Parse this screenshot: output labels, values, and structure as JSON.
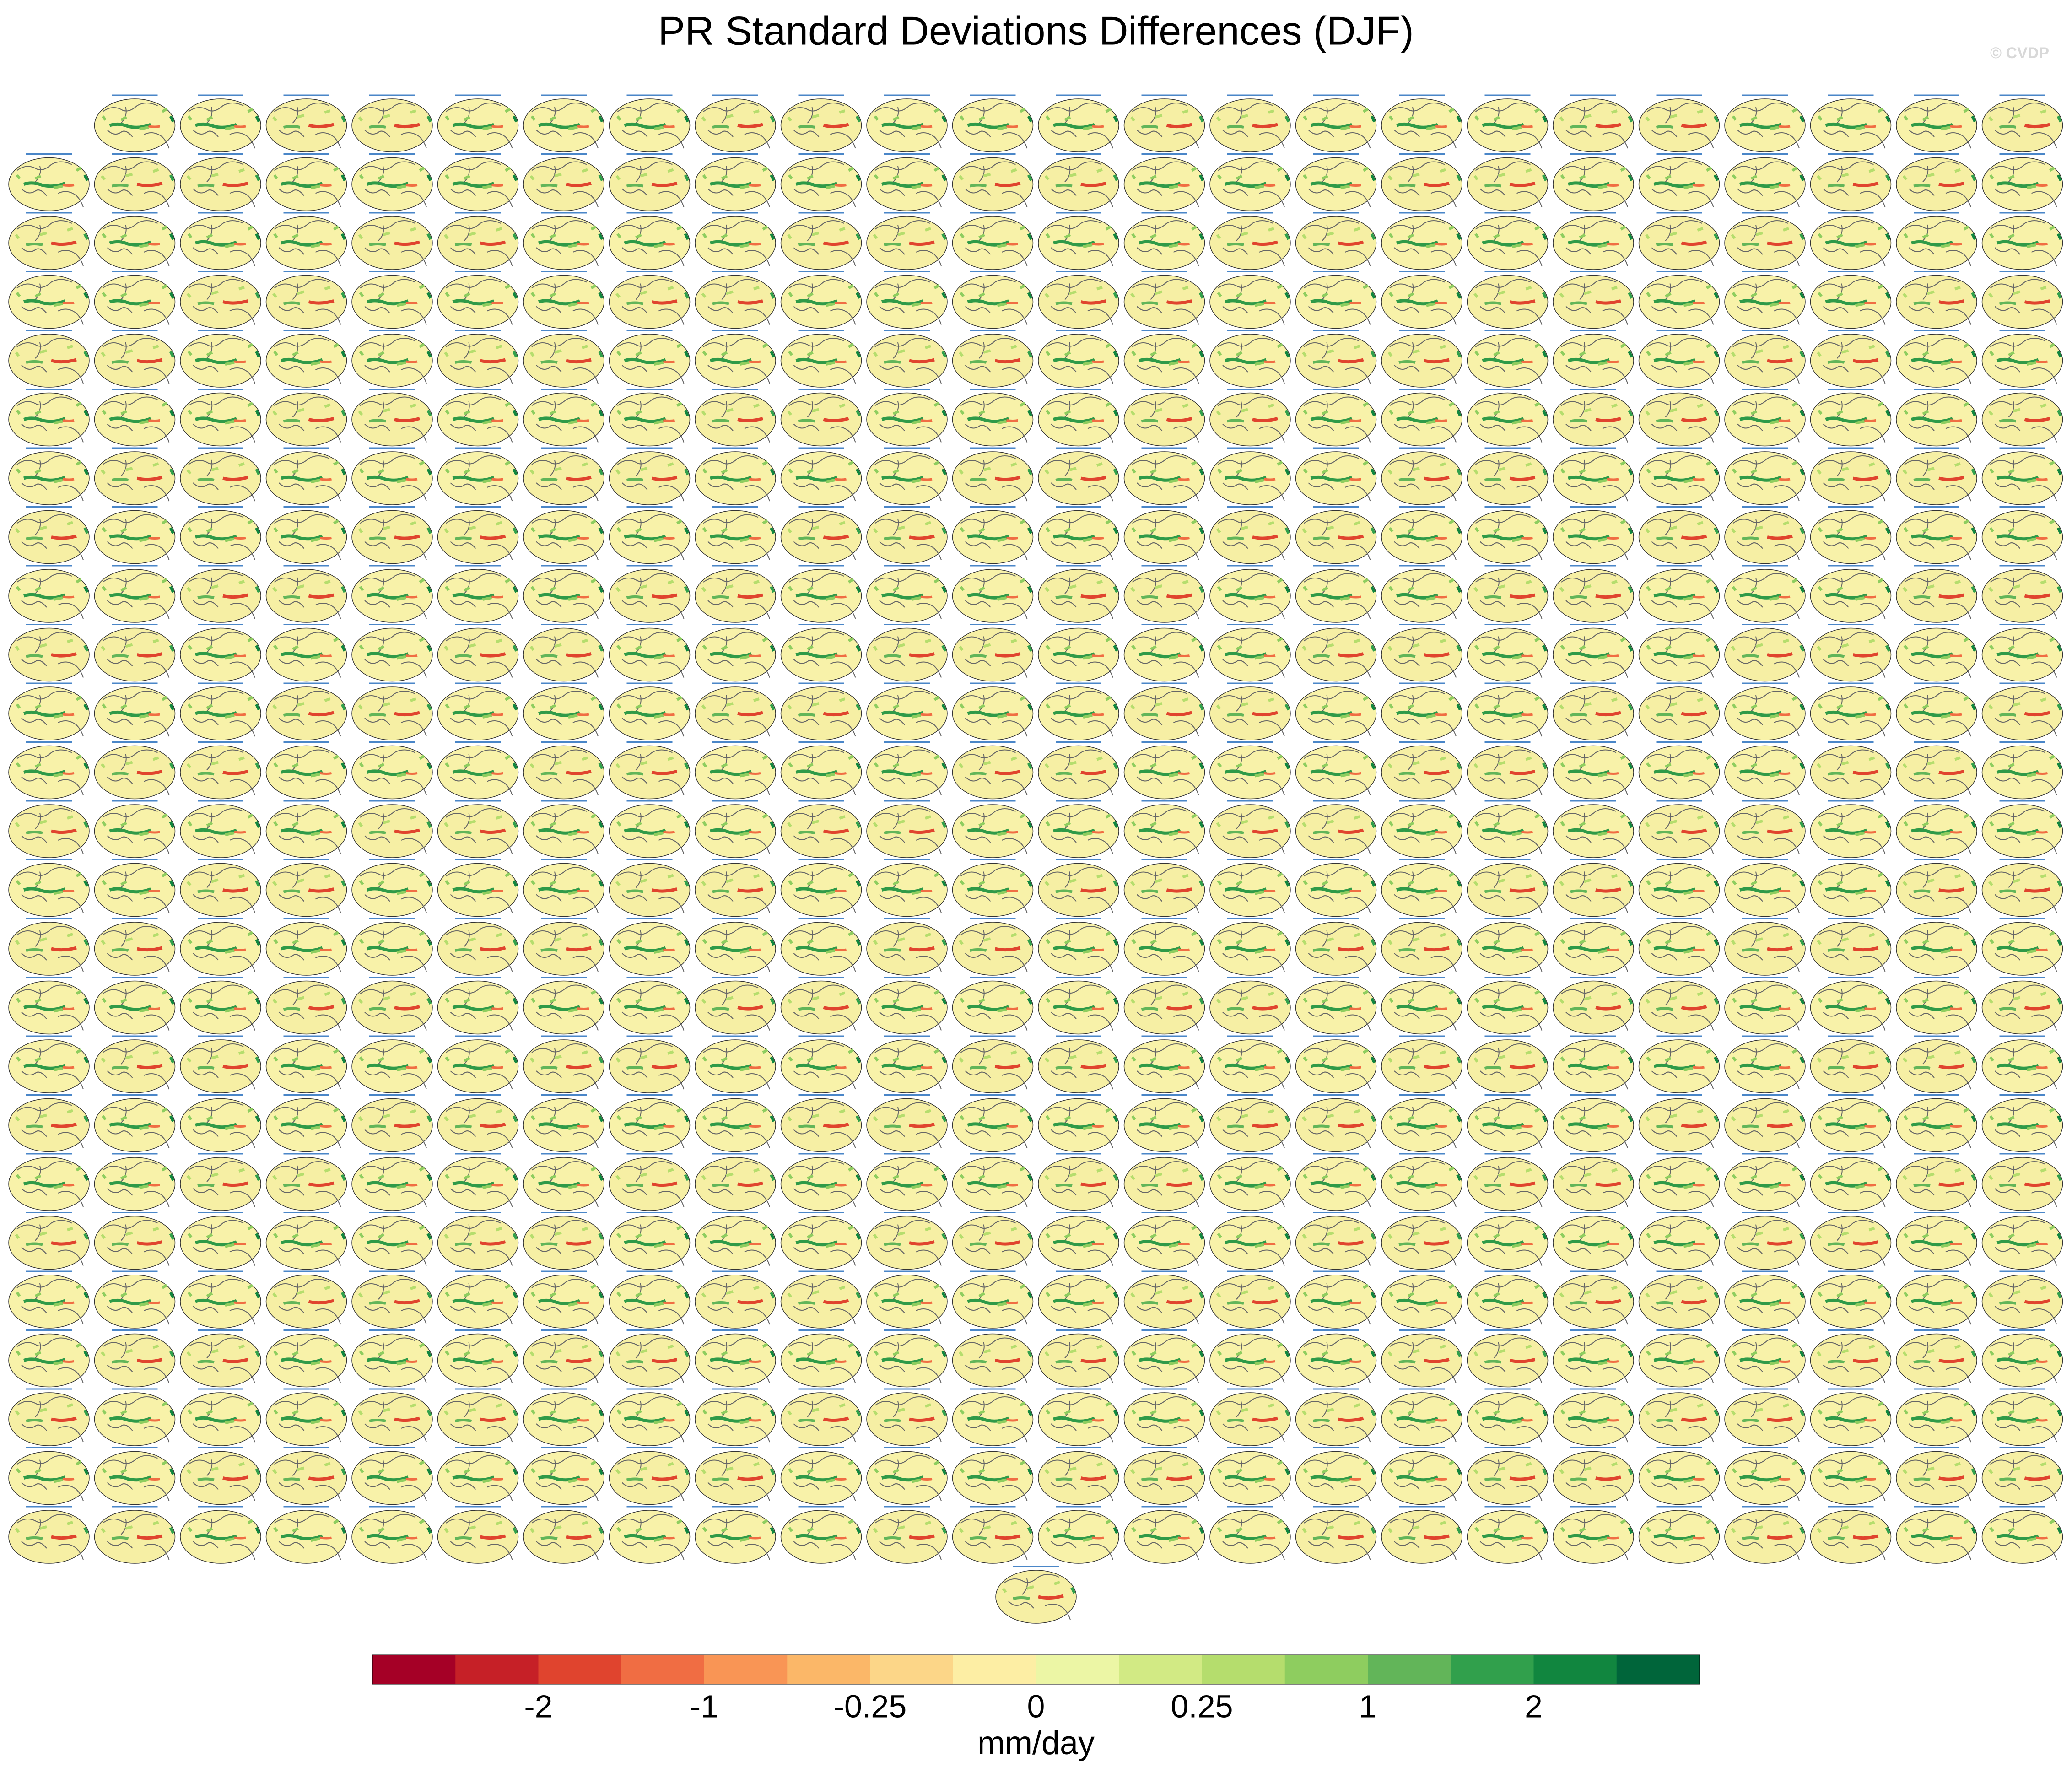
{
  "chart_data": {
    "type": "colorbar",
    "title": "PR Standard Deviations Differences (DJF)",
    "watermark": "© CVDP",
    "colorbar_label": "mm/day",
    "colors": [
      "#a50026",
      "#c62027",
      "#e0442e",
      "#f06d43",
      "#f99555",
      "#fbb768",
      "#fcd688",
      "#fdeea4",
      "#ecf6a5",
      "#d2ea84",
      "#b5dd6d",
      "#8ecd5f",
      "#62b559",
      "#31a04c",
      "#11863f",
      "#00653a"
    ],
    "ticks": [
      -2,
      -1,
      -0.25,
      0,
      0.25,
      1,
      2
    ]
  }
}
